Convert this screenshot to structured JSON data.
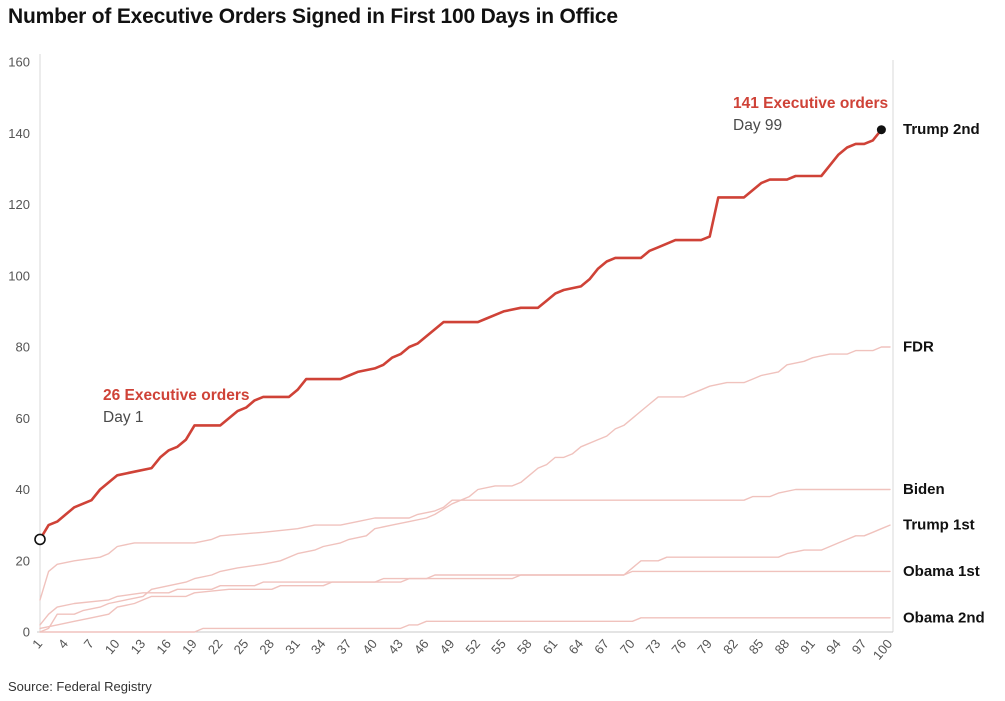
{
  "title": "Number of Executive Orders Signed in First 100 Days in Office",
  "source": "Source: Federal Registry",
  "annotations": {
    "start": {
      "line1": "26 Executive orders",
      "line2": "Day 1"
    },
    "end": {
      "line1": "141 Executive orders",
      "line2": "Day 99"
    }
  },
  "colors": {
    "highlight": "#cf4237",
    "muted": "#f0c2bd",
    "axis_line": "#d8d8d8",
    "baseline": "#c9c9c9",
    "tick_text": "#555555",
    "title_text": "#111111",
    "label_text": "#111111",
    "subtext": "#4a4a4a"
  },
  "chart_data": {
    "type": "line",
    "title": "Number of Executive Orders Signed in First 100 Days in Office",
    "xlabel": "",
    "ylabel": "",
    "xlim": [
      1,
      100
    ],
    "ylim": [
      0,
      160
    ],
    "xticks": [
      1,
      4,
      7,
      10,
      13,
      16,
      19,
      22,
      25,
      28,
      31,
      34,
      37,
      40,
      43,
      46,
      49,
      52,
      55,
      58,
      61,
      64,
      67,
      70,
      73,
      76,
      79,
      82,
      85,
      88,
      91,
      94,
      97,
      100
    ],
    "yticks": [
      0,
      20,
      40,
      60,
      80,
      100,
      120,
      140,
      160
    ],
    "grid": false,
    "legend_position": "right-end-labels",
    "series": [
      {
        "name": "FDR",
        "role": "muted",
        "points": [
          [
            1,
            0
          ],
          [
            2,
            1
          ],
          [
            3,
            5
          ],
          [
            5,
            5
          ],
          [
            6,
            6
          ],
          [
            8,
            7
          ],
          [
            9,
            8
          ],
          [
            11,
            9
          ],
          [
            13,
            10
          ],
          [
            14,
            12
          ],
          [
            16,
            13
          ],
          [
            18,
            14
          ],
          [
            19,
            15
          ],
          [
            21,
            16
          ],
          [
            22,
            17
          ],
          [
            24,
            18
          ],
          [
            27,
            19
          ],
          [
            29,
            20
          ],
          [
            31,
            22
          ],
          [
            33,
            23
          ],
          [
            34,
            24
          ],
          [
            36,
            25
          ],
          [
            37,
            26
          ],
          [
            39,
            27
          ],
          [
            40,
            29
          ],
          [
            42,
            30
          ],
          [
            44,
            31
          ],
          [
            46,
            32
          ],
          [
            47,
            33
          ],
          [
            49,
            36
          ],
          [
            51,
            38
          ],
          [
            52,
            40
          ],
          [
            54,
            41
          ],
          [
            56,
            41
          ],
          [
            57,
            42
          ],
          [
            58,
            44
          ],
          [
            59,
            46
          ],
          [
            60,
            47
          ],
          [
            61,
            49
          ],
          [
            62,
            49
          ],
          [
            63,
            50
          ],
          [
            64,
            52
          ],
          [
            66,
            54
          ],
          [
            67,
            55
          ],
          [
            68,
            57
          ],
          [
            69,
            58
          ],
          [
            70,
            60
          ],
          [
            71,
            62
          ],
          [
            72,
            64
          ],
          [
            73,
            66
          ],
          [
            76,
            66
          ],
          [
            77,
            67
          ],
          [
            78,
            68
          ],
          [
            79,
            69
          ],
          [
            81,
            70
          ],
          [
            83,
            70
          ],
          [
            84,
            71
          ],
          [
            85,
            72
          ],
          [
            87,
            73
          ],
          [
            88,
            75
          ],
          [
            90,
            76
          ],
          [
            91,
            77
          ],
          [
            93,
            78
          ],
          [
            95,
            78
          ],
          [
            96,
            79
          ],
          [
            98,
            79
          ],
          [
            99,
            80
          ],
          [
            100,
            80
          ]
        ]
      },
      {
        "name": "Biden",
        "role": "muted",
        "points": [
          [
            1,
            9
          ],
          [
            2,
            17
          ],
          [
            3,
            19
          ],
          [
            5,
            20
          ],
          [
            8,
            21
          ],
          [
            9,
            22
          ],
          [
            10,
            24
          ],
          [
            12,
            25
          ],
          [
            19,
            25
          ],
          [
            21,
            26
          ],
          [
            22,
            27
          ],
          [
            27,
            28
          ],
          [
            31,
            29
          ],
          [
            33,
            30
          ],
          [
            36,
            30
          ],
          [
            38,
            31
          ],
          [
            40,
            32
          ],
          [
            44,
            32
          ],
          [
            45,
            33
          ],
          [
            47,
            34
          ],
          [
            48,
            35
          ],
          [
            49,
            37
          ],
          [
            83,
            37
          ],
          [
            84,
            38
          ],
          [
            86,
            38
          ],
          [
            87,
            39
          ],
          [
            89,
            40
          ],
          [
            100,
            40
          ]
        ]
      },
      {
        "name": "Trump 1st",
        "role": "muted",
        "points": [
          [
            1,
            1
          ],
          [
            3,
            2
          ],
          [
            5,
            3
          ],
          [
            7,
            4
          ],
          [
            9,
            5
          ],
          [
            10,
            7
          ],
          [
            12,
            8
          ],
          [
            13,
            9
          ],
          [
            14,
            10
          ],
          [
            18,
            10
          ],
          [
            19,
            11
          ],
          [
            23,
            12
          ],
          [
            28,
            12
          ],
          [
            29,
            13
          ],
          [
            34,
            13
          ],
          [
            35,
            14
          ],
          [
            43,
            14
          ],
          [
            44,
            15
          ],
          [
            46,
            15
          ],
          [
            47,
            16
          ],
          [
            69,
            16
          ],
          [
            70,
            18
          ],
          [
            71,
            20
          ],
          [
            73,
            20
          ],
          [
            74,
            21
          ],
          [
            87,
            21
          ],
          [
            88,
            22
          ],
          [
            90,
            23
          ],
          [
            92,
            23
          ],
          [
            93,
            24
          ],
          [
            94,
            25
          ],
          [
            95,
            26
          ],
          [
            96,
            27
          ],
          [
            97,
            27
          ],
          [
            98,
            28
          ],
          [
            99,
            29
          ],
          [
            100,
            30
          ]
        ]
      },
      {
        "name": "Obama 1st",
        "role": "muted",
        "points": [
          [
            1,
            2
          ],
          [
            2,
            5
          ],
          [
            3,
            7
          ],
          [
            5,
            8
          ],
          [
            9,
            9
          ],
          [
            10,
            10
          ],
          [
            13,
            11
          ],
          [
            16,
            11
          ],
          [
            17,
            12
          ],
          [
            21,
            12
          ],
          [
            22,
            13
          ],
          [
            26,
            13
          ],
          [
            27,
            14
          ],
          [
            40,
            14
          ],
          [
            41,
            15
          ],
          [
            56,
            15
          ],
          [
            57,
            16
          ],
          [
            69,
            16
          ],
          [
            70,
            17
          ],
          [
            100,
            17
          ]
        ]
      },
      {
        "name": "Obama 2nd",
        "role": "muted",
        "points": [
          [
            1,
            0
          ],
          [
            19,
            0
          ],
          [
            20,
            1
          ],
          [
            43,
            1
          ],
          [
            44,
            2
          ],
          [
            45,
            2
          ],
          [
            46,
            3
          ],
          [
            70,
            3
          ],
          [
            71,
            4
          ],
          [
            100,
            4
          ]
        ]
      },
      {
        "name": "Trump 2nd",
        "role": "highlight",
        "points": [
          [
            1,
            26
          ],
          [
            2,
            30
          ],
          [
            3,
            31
          ],
          [
            4,
            33
          ],
          [
            5,
            35
          ],
          [
            7,
            37
          ],
          [
            8,
            40
          ],
          [
            9,
            42
          ],
          [
            10,
            44
          ],
          [
            12,
            45
          ],
          [
            14,
            46
          ],
          [
            15,
            49
          ],
          [
            16,
            51
          ],
          [
            17,
            52
          ],
          [
            18,
            54
          ],
          [
            19,
            58
          ],
          [
            22,
            58
          ],
          [
            23,
            60
          ],
          [
            24,
            62
          ],
          [
            25,
            63
          ],
          [
            26,
            65
          ],
          [
            27,
            66
          ],
          [
            30,
            66
          ],
          [
            31,
            68
          ],
          [
            32,
            71
          ],
          [
            36,
            71
          ],
          [
            37,
            72
          ],
          [
            38,
            73
          ],
          [
            40,
            74
          ],
          [
            41,
            75
          ],
          [
            42,
            77
          ],
          [
            43,
            78
          ],
          [
            44,
            80
          ],
          [
            45,
            81
          ],
          [
            46,
            83
          ],
          [
            47,
            85
          ],
          [
            48,
            87
          ],
          [
            52,
            87
          ],
          [
            53,
            88
          ],
          [
            54,
            89
          ],
          [
            55,
            90
          ],
          [
            57,
            91
          ],
          [
            59,
            91
          ],
          [
            60,
            93
          ],
          [
            61,
            95
          ],
          [
            62,
            96
          ],
          [
            64,
            97
          ],
          [
            65,
            99
          ],
          [
            66,
            102
          ],
          [
            67,
            104
          ],
          [
            68,
            105
          ],
          [
            71,
            105
          ],
          [
            72,
            107
          ],
          [
            73,
            108
          ],
          [
            74,
            109
          ],
          [
            75,
            110
          ],
          [
            78,
            110
          ],
          [
            79,
            111
          ],
          [
            80,
            122
          ],
          [
            83,
            122
          ],
          [
            84,
            124
          ],
          [
            85,
            126
          ],
          [
            86,
            127
          ],
          [
            88,
            127
          ],
          [
            89,
            128
          ],
          [
            92,
            128
          ],
          [
            93,
            131
          ],
          [
            94,
            134
          ],
          [
            95,
            136
          ],
          [
            96,
            137
          ],
          [
            97,
            137
          ],
          [
            98,
            138
          ],
          [
            99,
            141
          ]
        ]
      }
    ],
    "markers": [
      {
        "series": "Trump 2nd",
        "day": 1,
        "value": 26,
        "style": "open"
      },
      {
        "series": "Trump 2nd",
        "day": 99,
        "value": 141,
        "style": "filled"
      }
    ]
  }
}
